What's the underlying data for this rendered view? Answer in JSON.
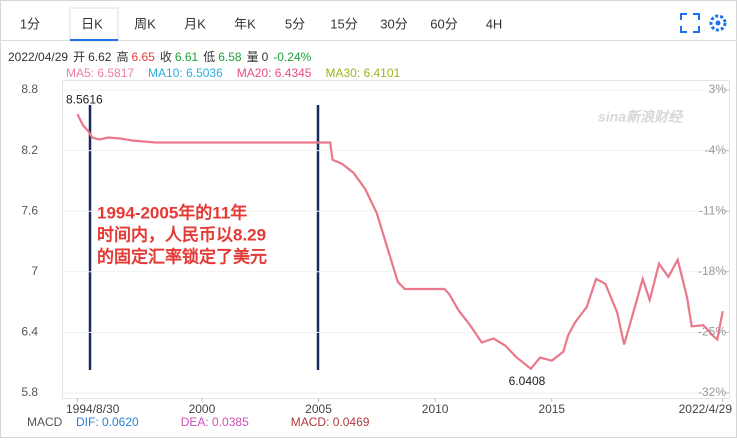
{
  "tabs": [
    "1分",
    "日K",
    "周K",
    "月K",
    "年K",
    "5分",
    "15分",
    "30分",
    "60分",
    "4H"
  ],
  "active_tab": 1,
  "info": {
    "date": "2022/04/29",
    "fields": [
      {
        "label": "开",
        "value": 6.62,
        "color": "#333333"
      },
      {
        "label": "高",
        "value": 6.65,
        "color": "#e53935"
      },
      {
        "label": "收",
        "value": 6.61,
        "color": "#1e9e3a"
      },
      {
        "label": "低",
        "value": 6.58,
        "color": "#1e9e3a"
      },
      {
        "label": "量",
        "value": 0,
        "color": "#333333"
      }
    ],
    "change": "-0.24%",
    "change_color": "#1e9e3a"
  },
  "ma_legend": [
    {
      "label": "MA5: 6.5817",
      "color": "#f07e9d"
    },
    {
      "label": "MA10: 6.5036",
      "color": "#27b0df"
    },
    {
      "label": "MA20: 6.4345",
      "color": "#e8507a"
    },
    {
      "label": "MA30: 6.4101",
      "color": "#9ab51e"
    }
  ],
  "chart_data": {
    "type": "line",
    "x": [
      1994.66,
      1994.9,
      1995.1,
      1995.3,
      1995.6,
      1996,
      1996.5,
      1997,
      1998,
      2000,
      2002,
      2004,
      2005.5,
      2005.6,
      2006,
      2006.5,
      2007,
      2007.5,
      2008,
      2008.4,
      2008.7,
      2009,
      2009.5,
      2010.4,
      2010.6,
      2011,
      2011.5,
      2012,
      2012.5,
      2013,
      2013.5,
      2014.1,
      2014.5,
      2015,
      2015.5,
      2015.7,
      2016,
      2016.5,
      2016.9,
      2017.3,
      2017.8,
      2018.1,
      2018.5,
      2018.9,
      2019.2,
      2019.6,
      2020,
      2020.4,
      2020.8,
      2021,
      2021.5,
      2021.9,
      2022.1,
      2022.33
    ],
    "series": [
      {
        "name": "USD/CNY",
        "color": "#e9788a",
        "values": [
          8.5616,
          8.45,
          8.4,
          8.33,
          8.31,
          8.33,
          8.32,
          8.3,
          8.28,
          8.28,
          8.28,
          8.28,
          8.28,
          8.11,
          8.07,
          7.98,
          7.82,
          7.58,
          7.2,
          6.9,
          6.83,
          6.83,
          6.83,
          6.83,
          6.78,
          6.62,
          6.47,
          6.3,
          6.34,
          6.27,
          6.15,
          6.0408,
          6.15,
          6.12,
          6.21,
          6.37,
          6.5,
          6.65,
          6.93,
          6.88,
          6.6,
          6.28,
          6.6,
          6.93,
          6.72,
          7.08,
          6.95,
          7.12,
          6.75,
          6.46,
          6.47,
          6.37,
          6.33,
          6.61
        ]
      }
    ],
    "xlim": [
      1994.0,
      2022.6
    ],
    "xticks": [
      {
        "value": 1994.66,
        "label": "1994/8/30"
      },
      2000,
      2005,
      2010,
      2015,
      {
        "value": 2022.33,
        "label": "2022/4/29"
      }
    ],
    "ylim": [
      5.8,
      8.8
    ],
    "yticks": [
      8.8,
      8.2,
      7.6,
      7,
      6.4,
      5.8
    ],
    "y2lim": [
      -32,
      3
    ],
    "y2ticks": [
      {
        "value": 3,
        "label": "3%"
      },
      {
        "value": -4,
        "label": "-4%"
      },
      {
        "value": -11,
        "label": "-11%"
      },
      {
        "value": -18,
        "label": "-18%"
      },
      {
        "value": -25,
        "label": "-25%"
      },
      {
        "value": -32,
        "label": "-32%"
      }
    ],
    "grid": true,
    "high": 8.5616,
    "low": 6.0408,
    "annotation": [
      "1994-2005年的11年",
      "时间内，人民币以8.29",
      "的固定汇率锁定了美元"
    ],
    "watermark": "sina新浪财经"
  },
  "macd": {
    "title": "MACD",
    "items": [
      {
        "label": "DIF: 0.0620",
        "color": "#2a7fd6"
      },
      {
        "label": "DEA: 0.0385",
        "color": "#d14fb8"
      },
      {
        "label": "MACD: 0.0469",
        "color": "#b03a3a"
      }
    ]
  }
}
